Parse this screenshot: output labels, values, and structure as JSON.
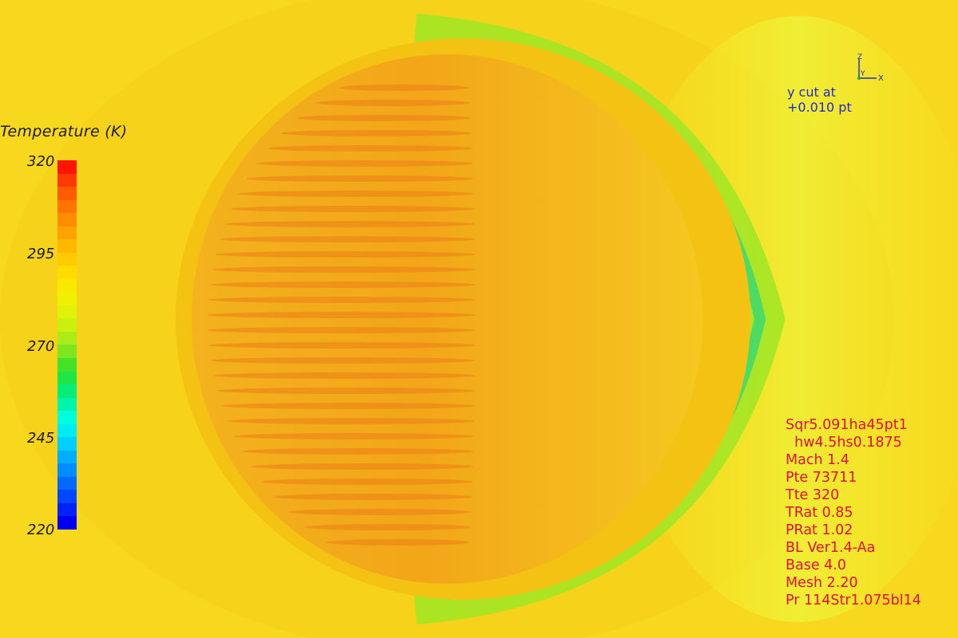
{
  "legend": {
    "title": "Temperature (K)",
    "ticks": [
      "320",
      "295",
      "270",
      "245",
      "220"
    ],
    "color_stops": [
      "#0000f0",
      "#0044ff",
      "#0088ff",
      "#00c8ff",
      "#00ffea",
      "#00f08a",
      "#2be22b",
      "#9ae81e",
      "#d8f20a",
      "#f6f000",
      "#ffd800",
      "#ffb400",
      "#ff8a00",
      "#ff5a00",
      "#ff1500"
    ]
  },
  "axis_triad": {
    "z": "Z",
    "y": "Y",
    "x": "X"
  },
  "cut_label": {
    "line1": "y cut at",
    "line2": "+0.010 pt"
  },
  "info": {
    "lines": [
      "Sqr5.091ha45pt1",
      "  hw4.5hs0.1875",
      "Mach 1.4",
      "Pte 73711",
      "Tte 320",
      "TRat 0.85",
      "PRat 1.02",
      "BL Ver1.4-Aa",
      "Base 4.0",
      "Mesh 2.20",
      "Pr 114Str1.075bl14"
    ]
  },
  "colors": {
    "background": "#f7d81e",
    "plume_outer": "#f3c510",
    "plume_core": "#f2a91a",
    "streak": "#ee8a18",
    "shock_front": "#38d66a",
    "text_cut": "#1d2ad6",
    "text_info": "#e0113a"
  }
}
